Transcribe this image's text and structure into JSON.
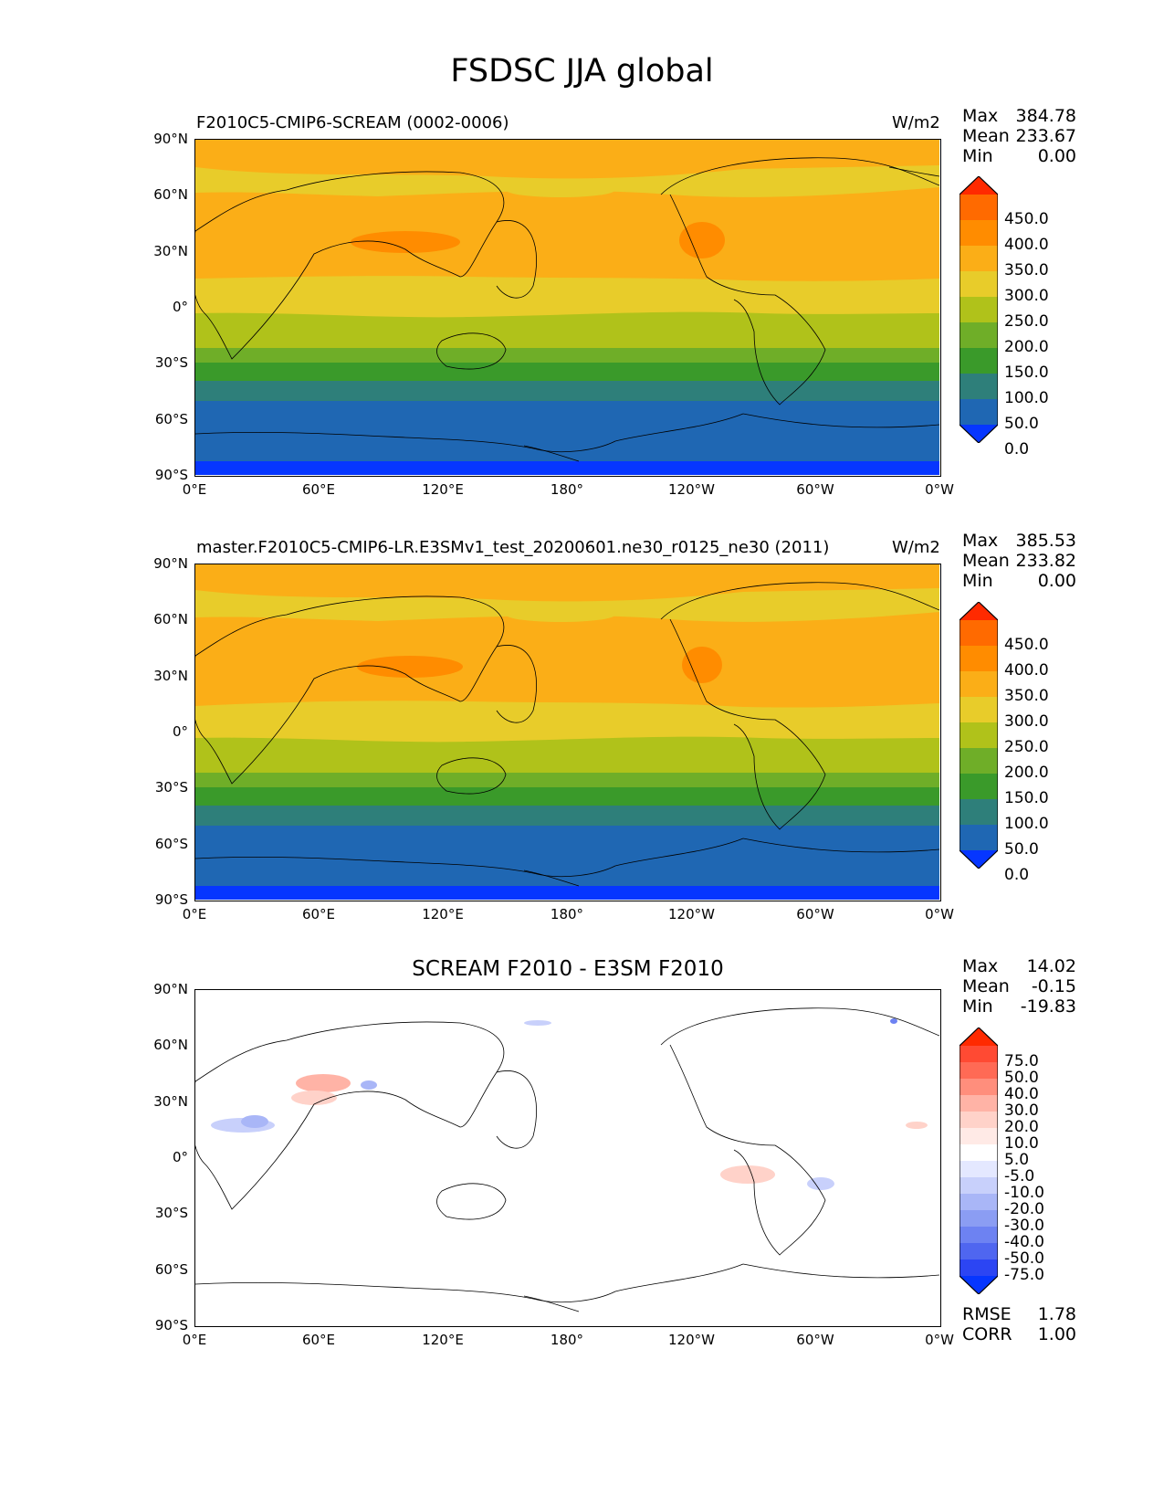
{
  "figure": {
    "title": "FSDSC JJA global"
  },
  "x_ticks": [
    "0°E",
    "60°E",
    "120°E",
    "180°",
    "120°W",
    "60°W",
    "0°W"
  ],
  "y_ticks": [
    "90°N",
    "60°N",
    "30°N",
    "0°",
    "30°S",
    "60°S",
    "90°S"
  ],
  "panels": [
    {
      "left_title": "F2010C5-CMIP6-SCREAM (0002-0006)",
      "center_title": "",
      "units": "W/m2",
      "stats": {
        "max_label": "Max",
        "max": "384.78",
        "mean_label": "Mean",
        "mean": "233.67",
        "min_label": "Min",
        "min": "0.00"
      },
      "colorbar": {
        "levels": [
          "450.0",
          "400.0",
          "350.0",
          "300.0",
          "250.0",
          "200.0",
          "150.0",
          "100.0",
          "50.0",
          "0.0"
        ],
        "colors": [
          "#ff2a00",
          "#ff6a00",
          "#ff8c00",
          "#fbae17",
          "#e8cc2a",
          "#b0c21a",
          "#6fae28",
          "#3a9a2a",
          "#2e7f7a",
          "#1f67b3",
          "#0636ff"
        ]
      }
    },
    {
      "left_title": "master.F2010C5-CMIP6-LR.E3SMv1_test_20200601.ne30_r0125_ne30 (2011)",
      "center_title": "",
      "units": "W/m2",
      "stats": {
        "max_label": "Max",
        "max": "385.53",
        "mean_label": "Mean",
        "mean": "233.82",
        "min_label": "Min",
        "min": "0.00"
      },
      "colorbar": {
        "levels": [
          "450.0",
          "400.0",
          "350.0",
          "300.0",
          "250.0",
          "200.0",
          "150.0",
          "100.0",
          "50.0",
          "0.0"
        ],
        "colors": [
          "#ff2a00",
          "#ff6a00",
          "#ff8c00",
          "#fbae17",
          "#e8cc2a",
          "#b0c21a",
          "#6fae28",
          "#3a9a2a",
          "#2e7f7a",
          "#1f67b3",
          "#0636ff"
        ]
      }
    },
    {
      "left_title": "",
      "center_title": "SCREAM F2010 - E3SM F2010",
      "units": "",
      "stats": {
        "max_label": "Max",
        "max": "14.02",
        "mean_label": "Mean",
        "mean": "-0.15",
        "min_label": "Min",
        "min": "-19.83"
      },
      "colorbar": {
        "levels": [
          "75.0",
          "50.0",
          "40.0",
          "30.0",
          "20.0",
          "10.0",
          "5.0",
          "-5.0",
          "-10.0",
          "-20.0",
          "-30.0",
          "-40.0",
          "-50.0",
          "-75.0"
        ],
        "colors": [
          "#ff2a00",
          "#ff4a33",
          "#ff6a55",
          "#ff8e7c",
          "#ffb3a6",
          "#ffd2c9",
          "#ffeae6",
          "#ffffff",
          "#e4e8ff",
          "#c8d0fb",
          "#a9b6f7",
          "#8b9df3",
          "#6d82f2",
          "#4f66f0",
          "#2c45f3",
          "#0636ff"
        ]
      },
      "rmse_label": "RMSE",
      "rmse": "1.78",
      "corr_label": "CORR",
      "corr": "1.00"
    }
  ]
}
